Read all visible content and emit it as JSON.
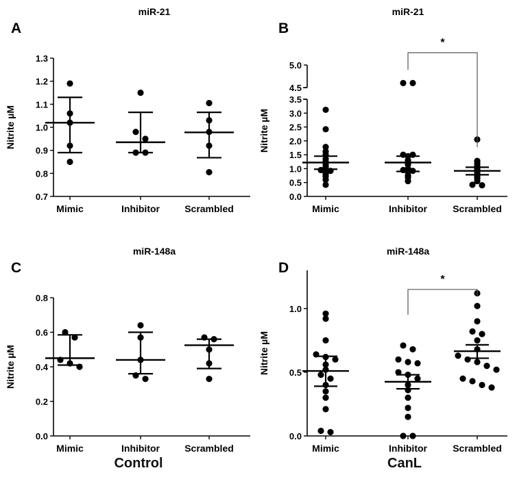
{
  "footers": {
    "left": "Control",
    "right": "CanL"
  },
  "colors": {
    "ink": "#000000",
    "bracket": "#555555"
  },
  "chart_data": [
    {
      "id": "A",
      "panel_label": "A",
      "title": "miR-21",
      "type": "scatter",
      "ylabel": "Nitrite µM",
      "categories": [
        "Mimic",
        "Inhibitor",
        "Scrambled"
      ],
      "ylim": [
        0.7,
        1.3
      ],
      "yticks": [
        0.7,
        0.8,
        0.9,
        1.0,
        1.1,
        1.2,
        1.3
      ],
      "ytick_labels": [
        "0.7",
        "0.8",
        "0.9",
        "1.0",
        "1.1",
        "1.2",
        "1.3"
      ],
      "error_style": "sd",
      "groups": [
        {
          "points": [
            1.19,
            1.06,
            1.02,
            0.92,
            0.85
          ],
          "mean": 1.02,
          "err_low": 0.89,
          "err_high": 1.13
        },
        {
          "points": [
            1.15,
            0.98,
            0.95,
            0.89,
            0.89
          ],
          "mean": 0.935,
          "err_low": 0.89,
          "err_high": 1.065
        },
        {
          "points": [
            1.105,
            1.03,
            0.98,
            0.92,
            0.805
          ],
          "mean": 0.978,
          "err_low": 0.868,
          "err_high": 1.065
        }
      ]
    },
    {
      "id": "B",
      "panel_label": "B",
      "title": "miR-21",
      "type": "scatter",
      "ylabel": "Nitrite µM",
      "categories": [
        "Mimic",
        "Inhibitor",
        "Scrambled"
      ],
      "axis_break": true,
      "segments": [
        {
          "min": 0,
          "max": 3.5
        },
        {
          "min": 4.5,
          "max": 5.0
        }
      ],
      "yticks": [
        0.0,
        0.5,
        1.0,
        1.5,
        2.0,
        2.5,
        3.0,
        3.5,
        4.5,
        5.0
      ],
      "ytick_labels": [
        "0.0",
        "0.5",
        "1.0",
        "1.5",
        "2.0",
        "2.5",
        "3.0",
        "3.5",
        "4.5",
        "5.0"
      ],
      "error_style": "sem",
      "groups": [
        {
          "points": [
            3.12,
            2.42,
            1.78,
            1.62,
            1.5,
            1.35,
            1.25,
            1.2,
            1.12,
            1.05,
            0.95,
            0.92,
            0.85,
            0.78,
            0.72,
            0.6,
            0.42
          ],
          "mean": 1.22,
          "err_low": 0.98,
          "err_high": 1.45
        },
        {
          "points": [
            4.6,
            4.6,
            1.5,
            1.5,
            1.45,
            1.3,
            1.25,
            1.2,
            1.15,
            1.0,
            0.95,
            0.92,
            0.88,
            0.75,
            0.68,
            0.55
          ],
          "mean": 1.22,
          "err_low": 0.9,
          "err_high": 1.45
        },
        {
          "points": [
            2.05,
            1.28,
            1.2,
            1.12,
            1.05,
            1.0,
            0.95,
            0.9,
            0.85,
            0.78,
            0.72,
            0.65,
            0.55,
            0.42,
            0.4
          ],
          "mean": 0.92,
          "err_low": 0.78,
          "err_high": 1.05
        }
      ],
      "significance": {
        "from": 1,
        "to": 2,
        "label": "*",
        "y": 5.3,
        "drop_from": 4.95,
        "drop_to": 2.55
      }
    },
    {
      "id": "C",
      "panel_label": "C",
      "title": "miR-148a",
      "type": "scatter",
      "ylabel": "Nitrite µM",
      "categories": [
        "Mimic",
        "Inhibitor",
        "Scrambled"
      ],
      "ylim": [
        0.0,
        0.8
      ],
      "yticks": [
        0.0,
        0.2,
        0.4,
        0.6,
        0.8
      ],
      "ytick_labels": [
        "0.0",
        "0.2",
        "0.4",
        "0.6",
        "0.8"
      ],
      "error_style": "sd",
      "groups": [
        {
          "points": [
            0.6,
            0.57,
            0.44,
            0.42,
            0.4
          ],
          "mean": 0.45,
          "err_low": 0.41,
          "err_high": 0.585
        },
        {
          "points": [
            0.64,
            0.57,
            0.44,
            0.35,
            0.33
          ],
          "mean": 0.44,
          "err_low": 0.36,
          "err_high": 0.6
        },
        {
          "points": [
            0.57,
            0.56,
            0.5,
            0.42,
            0.33
          ],
          "mean": 0.525,
          "err_low": 0.39,
          "err_high": 0.56
        }
      ]
    },
    {
      "id": "D",
      "panel_label": "D",
      "title": "miR-148a",
      "type": "scatter",
      "ylabel": "Nitrite µM",
      "categories": [
        "Mimic",
        "Inhibitor",
        "Scrambled"
      ],
      "ylim": [
        0.0,
        1.3
      ],
      "yticks": [
        0.0,
        0.5,
        1.0
      ],
      "ytick_labels": [
        "0.0",
        "0.5",
        "1.0"
      ],
      "error_style": "sem",
      "groups": [
        {
          "points": [
            0.96,
            0.92,
            0.75,
            0.64,
            0.62,
            0.6,
            0.56,
            0.52,
            0.48,
            0.45,
            0.4,
            0.35,
            0.3,
            0.21,
            0.04,
            0.03
          ],
          "mean": 0.51,
          "err_low": 0.39,
          "err_high": 0.625
        },
        {
          "points": [
            0.71,
            0.68,
            0.6,
            0.58,
            0.57,
            0.5,
            0.48,
            0.45,
            0.4,
            0.36,
            0.3,
            0.22,
            0.15,
            0.0,
            0.0
          ],
          "mean": 0.425,
          "err_low": 0.37,
          "err_high": 0.48
        },
        {
          "points": [
            1.12,
            1.02,
            0.9,
            0.82,
            0.8,
            0.75,
            0.68,
            0.63,
            0.6,
            0.58,
            0.55,
            0.52,
            0.45,
            0.43,
            0.4,
            0.38
          ],
          "mean": 0.665,
          "err_low": 0.61,
          "err_high": 0.715
        }
      ],
      "significance": {
        "from": 1,
        "to": 2,
        "label": "*",
        "y": 1.15,
        "drop_from": 0.95,
        "drop_to": 1.1
      }
    }
  ]
}
